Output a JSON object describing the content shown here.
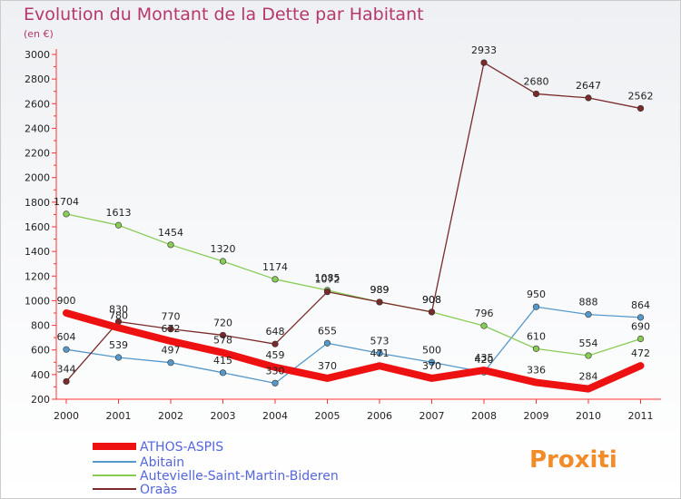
{
  "chart_data": {
    "type": "line",
    "title": "Evolution du Montant de la Dette par Habitant",
    "subtitle": "(en €)",
    "x": [
      "2000",
      "2001",
      "2002",
      "2003",
      "2004",
      "2005",
      "2006",
      "2007",
      "2008",
      "2009",
      "2010",
      "2011"
    ],
    "ylim": [
      200,
      3000
    ],
    "yticks": [
      200,
      400,
      600,
      800,
      1000,
      1200,
      1400,
      1600,
      1800,
      2000,
      2200,
      2400,
      2600,
      2800,
      3000
    ],
    "series": [
      {
        "name": "ATHOS-ASPIS",
        "color": "#ee1111",
        "values": [
          900,
          780,
          672,
          578,
          459,
          370,
          471,
          370,
          435,
          336,
          284,
          472
        ]
      },
      {
        "name": "Abitain",
        "color": "#5599cc",
        "values": [
          604,
          539,
          497,
          415,
          330,
          655,
          573,
          500,
          420,
          950,
          888,
          864
        ]
      },
      {
        "name": "Autevielle-Saint-Martin-Bideren",
        "color": "#88cc55",
        "values": [
          1704,
          1613,
          1454,
          1320,
          1174,
          1085,
          989,
          908,
          796,
          610,
          554,
          690
        ]
      },
      {
        "name": "Oraàs",
        "color": "#7a2a2a",
        "values": [
          344,
          830,
          770,
          720,
          648,
          1072,
          989,
          908,
          2933,
          2680,
          2647,
          2562
        ]
      }
    ]
  },
  "logo": {
    "text": "Proxiti"
  }
}
